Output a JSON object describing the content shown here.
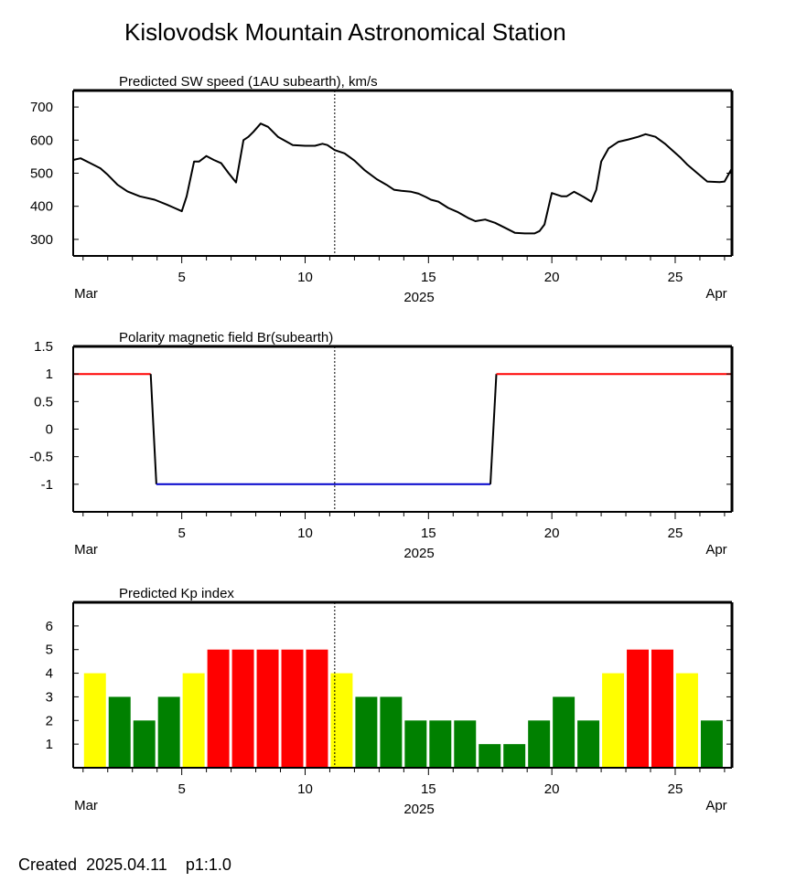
{
  "header": {
    "title": "Kislovodsk Mountain Astronomical Station"
  },
  "footer": {
    "created_label": "Created",
    "date": "2025.04.11",
    "version": "p1:1.0"
  },
  "colors": {
    "yellow": "#ffff00",
    "green": "#008000",
    "red": "#ff0000",
    "blue": "#0000cc",
    "line": "#000000"
  },
  "chart_data": [
    {
      "type": "line",
      "title": "Predicted SW speed (1AU subearth), km/s",
      "xlabel": "2025",
      "x_ticks": [
        "5",
        "10",
        "15",
        "20",
        "25"
      ],
      "x_start_label": "Mar",
      "x_end_label": "Apr",
      "xlim": [
        0.6,
        27.3
      ],
      "current_time_marker": 11.2,
      "y_ticks": [
        "700",
        "600",
        "500",
        "400",
        "300"
      ],
      "ylim": [
        250,
        750
      ],
      "series": [
        {
          "x": [
            0.6,
            0.9,
            1.3,
            1.7,
            2.0,
            2.4,
            2.8,
            3.3,
            3.9,
            4.4,
            4.7,
            5.0,
            5.2,
            5.5,
            5.7,
            6.0,
            6.3,
            6.6,
            6.9,
            7.2,
            7.5,
            7.7,
            7.9,
            8.2,
            8.5,
            8.9,
            9.5,
            10.0,
            10.4,
            10.7,
            10.9,
            11.2,
            11.6,
            12.0,
            12.4,
            12.9,
            13.3,
            13.6,
            13.9,
            14.3,
            14.6,
            14.9,
            15.1,
            15.4,
            15.8,
            16.2,
            16.6,
            16.9,
            17.3,
            17.7,
            18.1,
            18.5,
            18.9,
            19.3,
            19.5,
            19.7,
            20.0,
            20.4,
            20.6,
            20.9,
            21.3,
            21.6,
            21.8,
            22.0,
            22.3,
            22.7,
            23.1,
            23.5,
            23.8,
            24.2,
            24.6,
            24.9,
            25.2,
            25.5,
            25.9,
            26.3,
            26.8,
            27.0,
            27.3
          ],
          "values": [
            540,
            545,
            530,
            515,
            495,
            465,
            445,
            430,
            420,
            405,
            395,
            385,
            430,
            535,
            535,
            552,
            540,
            530,
            500,
            472,
            600,
            610,
            625,
            650,
            640,
            610,
            585,
            583,
            583,
            589,
            585,
            570,
            560,
            538,
            510,
            482,
            465,
            450,
            447,
            444,
            438,
            428,
            420,
            414,
            395,
            382,
            365,
            355,
            360,
            350,
            335,
            320,
            318,
            318,
            325,
            345,
            440,
            430,
            430,
            444,
            428,
            414,
            450,
            535,
            575,
            595,
            602,
            610,
            618,
            610,
            588,
            568,
            548,
            525,
            500,
            475,
            473,
            475,
            515
          ],
          "color": "#000000"
        }
      ]
    },
    {
      "type": "line",
      "title": "Polarity magnetic field  Br(subearth)",
      "xlabel": "2025",
      "x_ticks": [
        "5",
        "10",
        "15",
        "20",
        "25"
      ],
      "x_start_label": "Mar",
      "x_end_label": "Apr",
      "xlim": [
        0.6,
        27.3
      ],
      "current_time_marker": 11.2,
      "y_ticks": [
        "1.5",
        "1",
        "0.5",
        "0",
        "-0.5",
        "-1"
      ],
      "ylim": [
        -1.5,
        1.5
      ],
      "series": [
        {
          "x": [
            0.6,
            3.74
          ],
          "values": [
            1,
            1
          ],
          "color": "#ff0000"
        },
        {
          "x": [
            3.74,
            3.97
          ],
          "values": [
            1,
            -1
          ],
          "color": "#000000"
        },
        {
          "x": [
            3.97,
            17.51
          ],
          "values": [
            -1,
            -1
          ],
          "color": "#0000cc"
        },
        {
          "x": [
            17.51,
            17.75
          ],
          "values": [
            -1,
            1
          ],
          "color": "#000000"
        },
        {
          "x": [
            17.75,
            27.3
          ],
          "values": [
            1,
            1
          ],
          "color": "#ff0000"
        }
      ]
    },
    {
      "type": "bar",
      "title": "Predicted Kp index",
      "xlabel": "2025",
      "x_ticks": [
        "5",
        "10",
        "15",
        "20",
        "25"
      ],
      "x_start_label": "Mar",
      "x_end_label": "Apr",
      "xlim": [
        0.6,
        27.3
      ],
      "current_time_marker": 11.2,
      "y_ticks": [
        "6",
        "5",
        "4",
        "3",
        "2",
        "1"
      ],
      "ylim": [
        0,
        7
      ],
      "day_start": [
        1,
        2,
        3,
        4,
        5,
        6,
        7,
        8,
        9,
        10,
        11,
        12,
        13,
        14,
        15,
        16,
        17,
        18,
        19,
        20,
        21,
        22,
        23,
        24,
        25,
        26
      ],
      "values": [
        4,
        3,
        2,
        3,
        4,
        5,
        5,
        5,
        5,
        5,
        4,
        3,
        3,
        2,
        2,
        2,
        1,
        1,
        2,
        3,
        2,
        4,
        5,
        5,
        4,
        2
      ],
      "bar_colors": [
        "yellow",
        "green",
        "green",
        "green",
        "yellow",
        "red",
        "red",
        "red",
        "red",
        "red",
        "yellow",
        "green",
        "green",
        "green",
        "green",
        "green",
        "green",
        "green",
        "green",
        "green",
        "green",
        "yellow",
        "red",
        "red",
        "yellow",
        "green"
      ]
    }
  ]
}
